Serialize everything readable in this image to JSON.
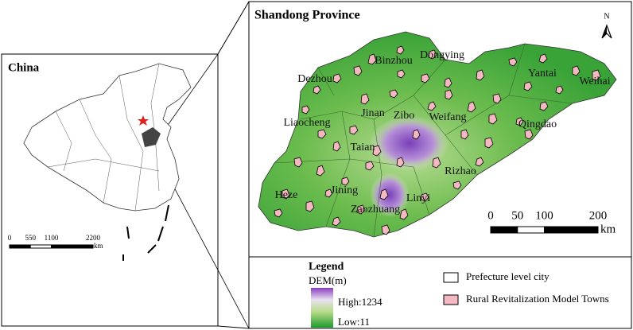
{
  "china_panel": {
    "title": "China",
    "scale": {
      "ticks": [
        0,
        550,
        1100,
        2200
      ],
      "unit": "km"
    }
  },
  "shandong_panel": {
    "title": "Shandong Province",
    "north": "N",
    "cities": [
      "Binzhou",
      "Dongying",
      "Dezhou",
      "Yantai",
      "Weihai",
      "Liaocheng",
      "Jinan",
      "Zibo",
      "Weifang",
      "Qingdao",
      "Taian",
      "Rizhao",
      "Heze",
      "Jining",
      "Linyi",
      "Zaozhuang"
    ],
    "scale": {
      "ticks": [
        0,
        50,
        100,
        200
      ],
      "unit": "km"
    }
  },
  "legend": {
    "title": "Legend",
    "dem_label": "DEM(m)",
    "high": "High:1234",
    "low": "Low:11",
    "items": [
      "Prefecture level city",
      "Rural Revitalization Model Towns"
    ]
  }
}
